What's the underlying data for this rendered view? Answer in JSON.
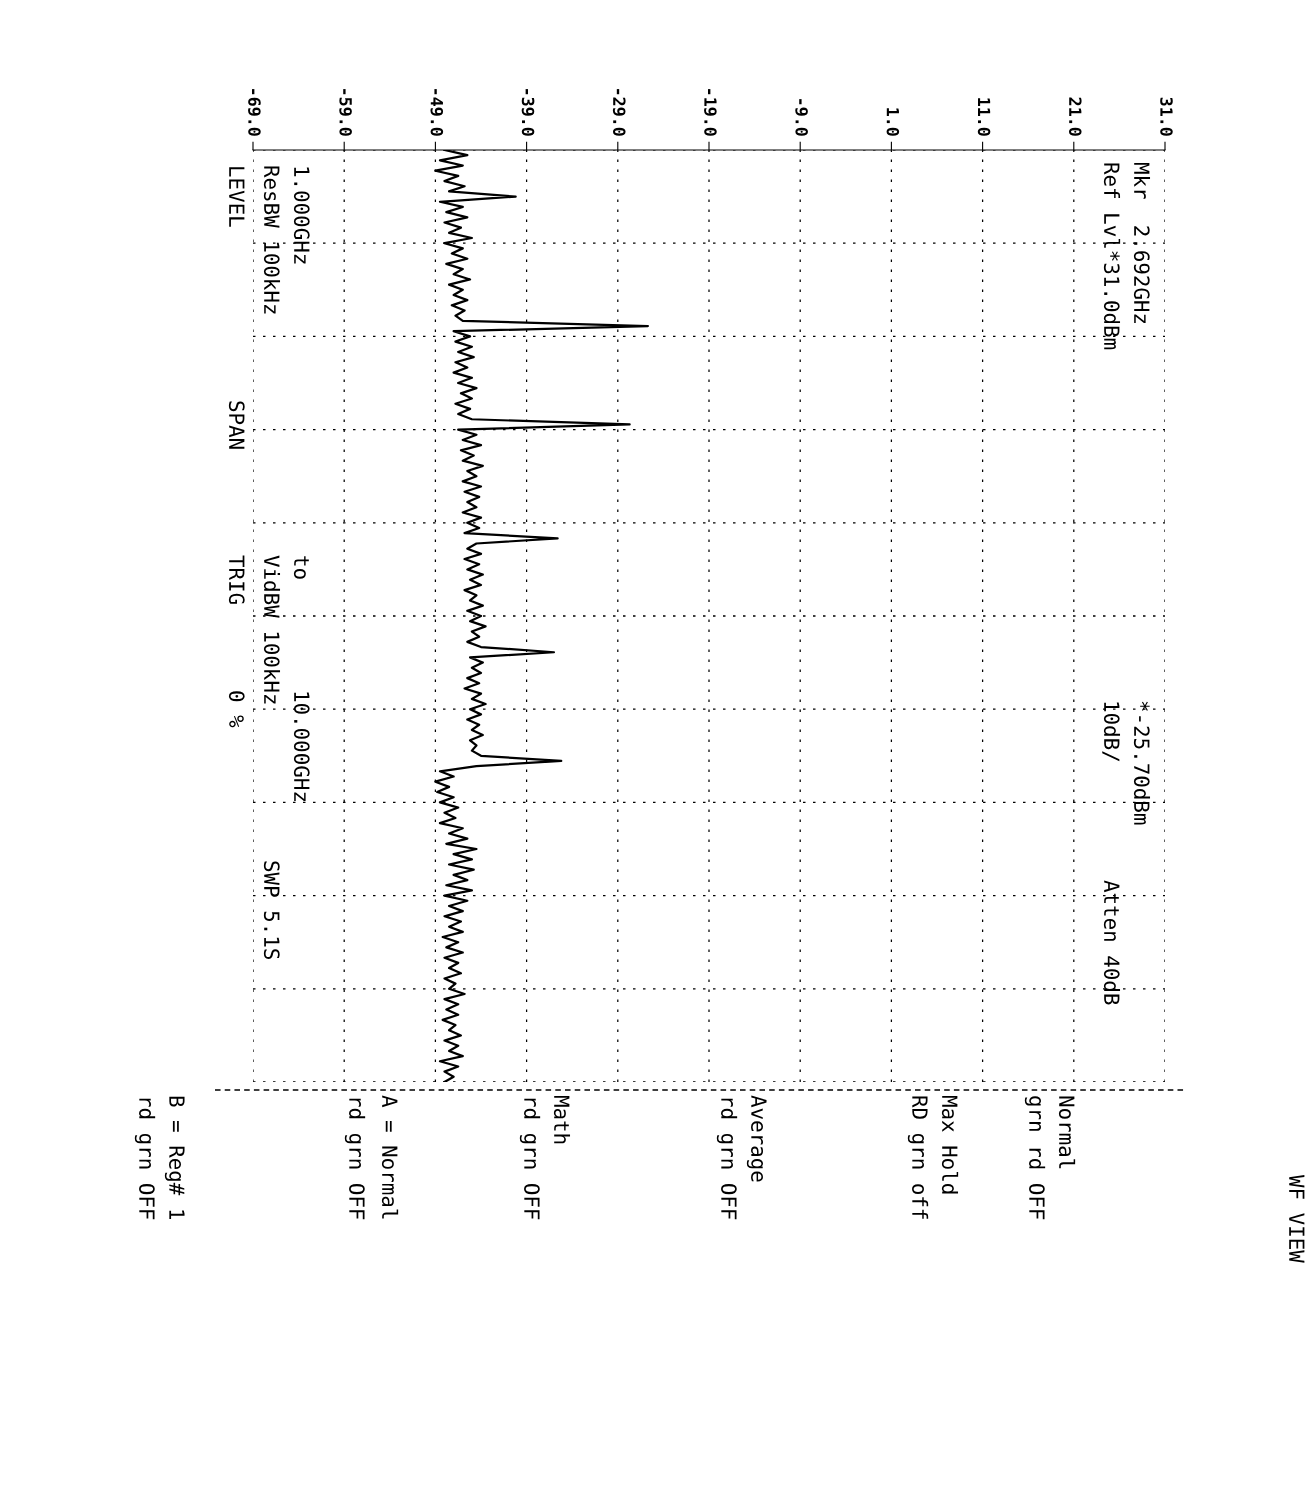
{
  "chart_data": {
    "type": "line",
    "orientation": "horizontal",
    "tick_labels": "x",
    "grid": true,
    "marker": "none",
    "line_style": "solid",
    "xlim": [
      -69,
      31
    ],
    "xticks": [
      {
        "value": -69,
        "label": "-69.0"
      },
      {
        "value": -59,
        "label": "-59.0"
      },
      {
        "value": -49,
        "label": "-49.0"
      },
      {
        "value": -39,
        "label": "-39.0"
      },
      {
        "value": -29,
        "label": "-29.0"
      },
      {
        "value": -19,
        "label": "-19.0"
      },
      {
        "value": -9,
        "label": "-9.0"
      },
      {
        "value": 1,
        "label": "1.0"
      },
      {
        "value": 11,
        "label": "11.0"
      },
      {
        "value": 21,
        "label": "21.0"
      },
      {
        "value": 31,
        "label": "31.0"
      }
    ],
    "categories": [
      null,
      null,
      null,
      null,
      null,
      null,
      null,
      null,
      null,
      null,
      null,
      null,
      null,
      null,
      null,
      null,
      null,
      null,
      null,
      null,
      null,
      null,
      null,
      null,
      null,
      null,
      null,
      null,
      null,
      null,
      null,
      null,
      null,
      null,
      null,
      null,
      null,
      null,
      null,
      null,
      null,
      null,
      null,
      null,
      null,
      null,
      null,
      null,
      null,
      null,
      null,
      null,
      null,
      null,
      null,
      null,
      null,
      null,
      null,
      null,
      null,
      null,
      null,
      null,
      null,
      null,
      null,
      null,
      null,
      null,
      null,
      null,
      null,
      null,
      null,
      null,
      null,
      null,
      null,
      null,
      null,
      null,
      null,
      null,
      null,
      null,
      null,
      null,
      null,
      null,
      null,
      null,
      null,
      null,
      null,
      null,
      null,
      null,
      null,
      null,
      null,
      null,
      null,
      null,
      null,
      null,
      null,
      null,
      null,
      null,
      null,
      null,
      null,
      null,
      null,
      null,
      null,
      null,
      null,
      null,
      null,
      null,
      null,
      null,
      null,
      null,
      null,
      null,
      null,
      null,
      null,
      null,
      null,
      null,
      null,
      null,
      null,
      null,
      null,
      null,
      null,
      null,
      null,
      null,
      null,
      null,
      null,
      null,
      null,
      null,
      null,
      null,
      null,
      null,
      null,
      null,
      null,
      null,
      null,
      null,
      null,
      null,
      null,
      null,
      null,
      null,
      null,
      null,
      null,
      null,
      null,
      null,
      null,
      null,
      null,
      null,
      null,
      null,
      null,
      null,
      null
    ],
    "annotations": [
      "Mkr  2.692GHz",
      "*-25.70dBm",
      "Ref Lvl*31.0dBm",
      "10dB/",
      "Atten 40dB",
      "WF VIEW",
      "1.000GHz",
      "to",
      "10.000GHz",
      "ResBW 100kHz",
      "VidBW 100kHz",
      "SWP 5.1S",
      "LEVEL",
      "SPAN",
      "TRIG",
      "0 %",
      "Normal",
      "grn rd OFF",
      "Max Hold",
      "RD grn off",
      "Average",
      "rd grn OFF",
      "Math",
      "rd grn OFF",
      "A = Normal",
      "rd grn OFF",
      "B = Reg# 1",
      "rd grn OFF"
    ],
    "series": [
      {
        "color": "#000000",
        "values": [
          -48,
          -45.5,
          -48.5,
          -46,
          -49,
          -46.5,
          -48,
          -45.8,
          -47.5,
          -40.2,
          -48.5,
          -46,
          -47.8,
          -45.5,
          -48,
          -46.2,
          -47.5,
          -45,
          -48,
          -46,
          -47.2,
          -45.5,
          -47.8,
          -46,
          -47,
          -45.2,
          -47.5,
          -46,
          -47,
          -45.5,
          -47.2,
          -45.8,
          -46.8,
          -46,
          -25.7,
          -47,
          -45.2,
          -46.8,
          -45,
          -46.5,
          -44.8,
          -46.8,
          -45.5,
          -47,
          -45,
          -46.5,
          -44.5,
          -46.2,
          -45,
          -46.8,
          -45.2,
          -46.5,
          -45,
          -27.7,
          -46.5,
          -44.5,
          -46,
          -44,
          -46.2,
          -44.8,
          -46,
          -43.8,
          -45.5,
          -44.5,
          -46,
          -44,
          -45.8,
          -44.2,
          -45.5,
          -44.5,
          -46,
          -44,
          -45.5,
          -44.2,
          -45.8,
          -35.6,
          -44.5,
          -45.5,
          -44,
          -45.8,
          -44.2,
          -45.5,
          -43.8,
          -45.2,
          -44,
          -45.8,
          -44.5,
          -45.2,
          -43.8,
          -45.5,
          -44,
          -45.2,
          -43.5,
          -45,
          -44.2,
          -45.5,
          -44,
          -36,
          -45.2,
          -43.8,
          -45,
          -44,
          -45.5,
          -44.2,
          -45.8,
          -44,
          -45,
          -43.5,
          -45.2,
          -44,
          -45.5,
          -44.2,
          -45,
          -43.8,
          -45.2,
          -44.5,
          -45,
          -44,
          -35.2,
          -44.5,
          -48.5,
          -47,
          -49,
          -47.5,
          -48.8,
          -47,
          -48.5,
          -46.5,
          -48,
          -46.8,
          -48.5,
          -46,
          -47.5,
          -45.5,
          -47.8,
          -44.5,
          -47,
          -45,
          -47.5,
          -44.8,
          -47,
          -45.5,
          -47.8,
          -45,
          -48,
          -45.5,
          -47.5,
          -46,
          -48,
          -46.2,
          -47.5,
          -46,
          -48.2,
          -46.5,
          -47.8,
          -46,
          -48,
          -46.5,
          -47.5,
          -46.2,
          -48,
          -46.8,
          -47.5,
          -45.8,
          -48,
          -46.5,
          -47.8,
          -46.5,
          -48.2,
          -46.8,
          -47.5,
          -46.2,
          -48,
          -46.5,
          -47.5,
          -46,
          -48.5,
          -46.5,
          -48,
          -47,
          -48
        ]
      }
    ]
  }
}
